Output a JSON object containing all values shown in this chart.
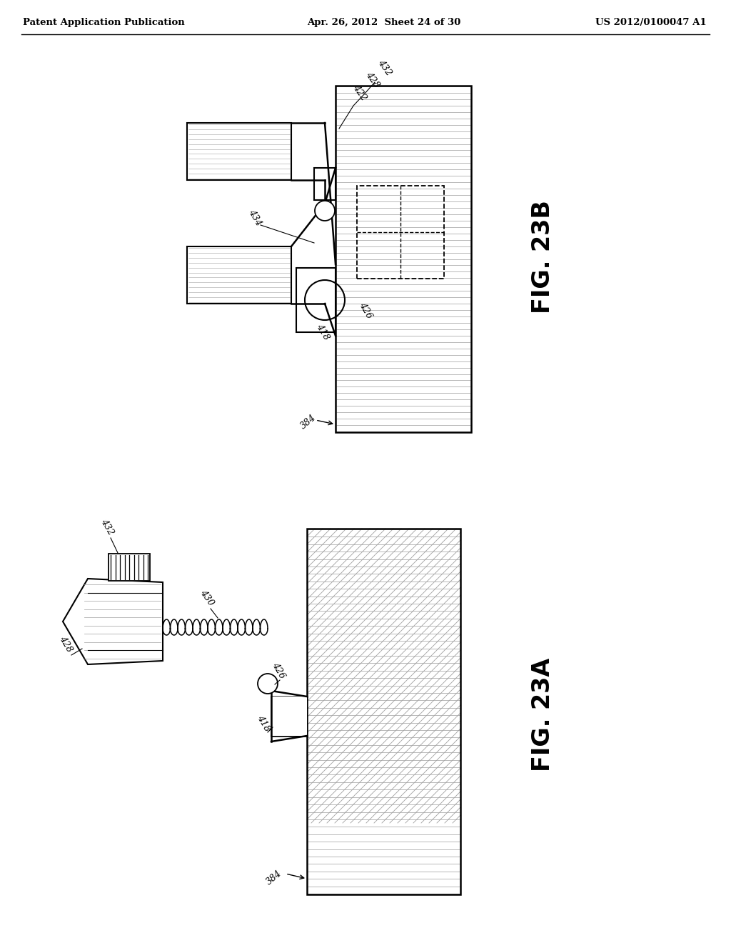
{
  "bg_color": "#ffffff",
  "line_color": "#000000",
  "header_left": "Patent Application Publication",
  "header_mid": "Apr. 26, 2012  Sheet 24 of 30",
  "header_right": "US 2012/0100047 A1",
  "fig23b_label": "FIG. 23B",
  "fig23a_label": "FIG. 23A",
  "hatch_gray": "#b0b0b0",
  "hatch_light": "#cccccc"
}
